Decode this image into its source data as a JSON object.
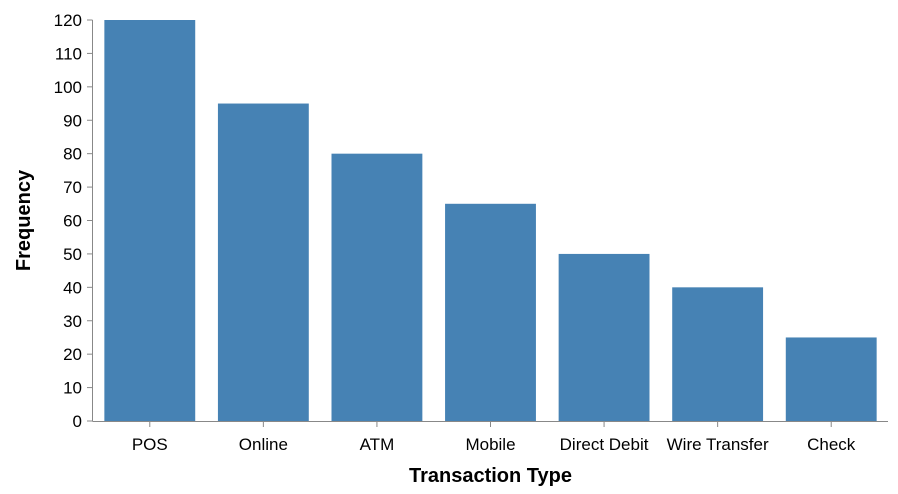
{
  "chart_data": {
    "type": "bar",
    "title": "",
    "xlabel": "Transaction Type",
    "ylabel": "Frequency",
    "categories": [
      "POS",
      "Online",
      "ATM",
      "Mobile",
      "Direct Debit",
      "Wire Transfer",
      "Check"
    ],
    "values": [
      120,
      95,
      80,
      65,
      50,
      40,
      25
    ],
    "ylim": [
      0,
      120
    ],
    "yticks": [
      0,
      10,
      20,
      30,
      40,
      50,
      60,
      70,
      80,
      90,
      100,
      110,
      120
    ],
    "grid": false,
    "legend": "none",
    "bar_color": "#4682b4",
    "axis_color": "#888888"
  }
}
